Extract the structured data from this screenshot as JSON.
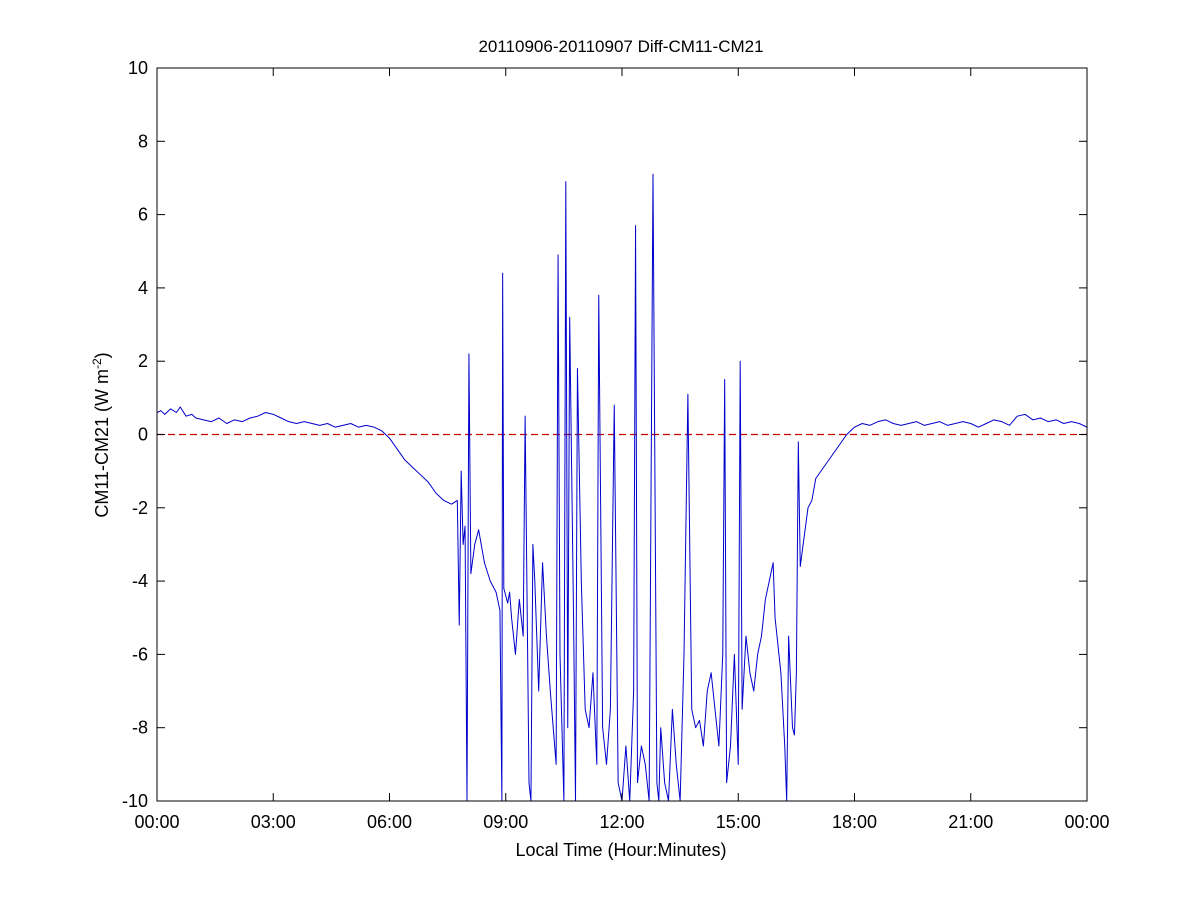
{
  "chart_data": {
    "type": "line",
    "title": "20110906-20110907 Diff-CM11-CM21",
    "xlabel": "Local Time (Hour:Minutes)",
    "ylabel": {
      "main": "CM11-CM21 (W m",
      "superscript": "-2",
      "close": ")"
    },
    "xlim": [
      0,
      24
    ],
    "ylim": [
      -10,
      10
    ],
    "x_ticks": [
      {
        "value": 0,
        "label": "00:00"
      },
      {
        "value": 3,
        "label": "03:00"
      },
      {
        "value": 6,
        "label": "06:00"
      },
      {
        "value": 9,
        "label": "09:00"
      },
      {
        "value": 12,
        "label": "12:00"
      },
      {
        "value": 15,
        "label": "15:00"
      },
      {
        "value": 18,
        "label": "18:00"
      },
      {
        "value": 21,
        "label": "21:00"
      },
      {
        "value": 24,
        "label": "00:00"
      }
    ],
    "y_ticks": [
      {
        "value": 10,
        "label": "10"
      },
      {
        "value": 8,
        "label": "8"
      },
      {
        "value": 6,
        "label": "6"
      },
      {
        "value": 4,
        "label": "4"
      },
      {
        "value": 2,
        "label": "2"
      },
      {
        "value": 0,
        "label": "0"
      },
      {
        "value": -2,
        "label": "-2"
      },
      {
        "value": -4,
        "label": "-4"
      },
      {
        "value": -6,
        "label": "-6"
      },
      {
        "value": -8,
        "label": "-8"
      },
      {
        "value": -10,
        "label": "-10"
      }
    ],
    "grid": false,
    "reference_line": {
      "y": 0,
      "color": "#cc0000",
      "style": "dashed"
    },
    "series": [
      {
        "color": "#0000cc",
        "x": [
          0.0,
          0.1,
          0.2,
          0.35,
          0.5,
          0.6,
          0.75,
          0.9,
          1.0,
          1.2,
          1.4,
          1.6,
          1.8,
          2.0,
          2.2,
          2.4,
          2.6,
          2.8,
          3.0,
          3.2,
          3.4,
          3.6,
          3.8,
          4.0,
          4.2,
          4.4,
          4.6,
          4.8,
          5.0,
          5.2,
          5.4,
          5.6,
          5.8,
          6.0,
          6.2,
          6.4,
          6.6,
          6.8,
          7.0,
          7.2,
          7.4,
          7.6,
          7.75,
          7.8,
          7.85,
          7.9,
          7.95,
          8.0,
          8.05,
          8.1,
          8.2,
          8.3,
          8.45,
          8.6,
          8.75,
          8.85,
          8.9,
          8.92,
          8.95,
          9.05,
          9.1,
          9.15,
          9.25,
          9.35,
          9.45,
          9.5,
          9.6,
          9.65,
          9.7,
          9.75,
          9.85,
          9.95,
          10.05,
          10.15,
          10.3,
          10.35,
          10.4,
          10.5,
          10.55,
          10.6,
          10.65,
          10.75,
          10.8,
          10.85,
          10.95,
          11.05,
          11.15,
          11.25,
          11.35,
          11.4,
          11.5,
          11.6,
          11.7,
          11.8,
          11.9,
          12.0,
          12.1,
          12.2,
          12.3,
          12.35,
          12.4,
          12.5,
          12.6,
          12.7,
          12.8,
          12.9,
          12.95,
          13.0,
          13.1,
          13.2,
          13.3,
          13.4,
          13.5,
          13.6,
          13.7,
          13.8,
          13.9,
          14.0,
          14.1,
          14.2,
          14.3,
          14.4,
          14.5,
          14.6,
          14.65,
          14.7,
          14.8,
          14.9,
          15.0,
          15.05,
          15.1,
          15.2,
          15.3,
          15.4,
          15.5,
          15.6,
          15.7,
          15.8,
          15.9,
          15.95,
          16.0,
          16.1,
          16.2,
          16.25,
          16.3,
          16.4,
          16.45,
          16.5,
          16.55,
          16.6,
          16.7,
          16.8,
          16.9,
          17.0,
          17.2,
          17.4,
          17.6,
          17.8,
          18.0,
          18.2,
          18.4,
          18.6,
          18.8,
          19.0,
          19.2,
          19.4,
          19.6,
          19.8,
          20.0,
          20.2,
          20.4,
          20.6,
          20.8,
          21.0,
          21.2,
          21.4,
          21.6,
          21.8,
          22.0,
          22.2,
          22.4,
          22.6,
          22.8,
          23.0,
          23.2,
          23.4,
          23.6,
          23.8,
          24.0
        ],
        "y": [
          0.6,
          0.65,
          0.55,
          0.7,
          0.6,
          0.75,
          0.5,
          0.55,
          0.45,
          0.4,
          0.35,
          0.45,
          0.3,
          0.4,
          0.35,
          0.45,
          0.5,
          0.6,
          0.55,
          0.45,
          0.35,
          0.3,
          0.35,
          0.3,
          0.25,
          0.3,
          0.2,
          0.25,
          0.3,
          0.2,
          0.25,
          0.2,
          0.1,
          -0.1,
          -0.4,
          -0.7,
          -0.9,
          -1.1,
          -1.3,
          -1.6,
          -1.8,
          -1.9,
          -1.8,
          -5.2,
          -1.0,
          -3.0,
          -2.5,
          -10.0,
          2.2,
          -3.8,
          -3.0,
          -2.6,
          -3.5,
          -4.0,
          -4.3,
          -4.8,
          -10.0,
          4.4,
          -4.2,
          -4.6,
          -4.3,
          -5.0,
          -6.0,
          -4.5,
          -5.5,
          0.5,
          -9.5,
          -10.0,
          -3.0,
          -4.0,
          -7.0,
          -3.5,
          -5.5,
          -7.0,
          -9.0,
          4.9,
          -6.0,
          -10.0,
          6.9,
          -8.0,
          3.2,
          -5.0,
          -10.0,
          1.8,
          -4.0,
          -7.5,
          -8.0,
          -6.5,
          -9.0,
          3.8,
          -8.0,
          -9.0,
          -7.5,
          0.8,
          -9.5,
          -10.0,
          -8.5,
          -10.0,
          -7.0,
          5.7,
          -9.5,
          -8.5,
          -9.0,
          -10.0,
          7.1,
          -9.5,
          -10.0,
          -8.0,
          -9.5,
          -10.0,
          -7.5,
          -9.0,
          -10.0,
          -6.0,
          1.1,
          -7.5,
          -8.0,
          -7.8,
          -8.5,
          -7.0,
          -6.5,
          -7.5,
          -8.5,
          -6.0,
          1.5,
          -9.5,
          -8.5,
          -6.0,
          -9.0,
          2.0,
          -7.5,
          -5.5,
          -6.5,
          -7.0,
          -6.0,
          -5.5,
          -4.5,
          -4.0,
          -3.5,
          -5.0,
          -5.5,
          -6.5,
          -8.5,
          -10.0,
          -5.5,
          -8.0,
          -8.2,
          -6.5,
          -0.2,
          -3.6,
          -2.8,
          -2.0,
          -1.8,
          -1.2,
          -0.9,
          -0.6,
          -0.3,
          0.0,
          0.2,
          0.3,
          0.25,
          0.35,
          0.4,
          0.3,
          0.25,
          0.3,
          0.35,
          0.25,
          0.3,
          0.35,
          0.25,
          0.3,
          0.35,
          0.3,
          0.2,
          0.3,
          0.4,
          0.35,
          0.25,
          0.5,
          0.55,
          0.4,
          0.45,
          0.35,
          0.4,
          0.3,
          0.35,
          0.3,
          0.2
        ]
      }
    ]
  }
}
